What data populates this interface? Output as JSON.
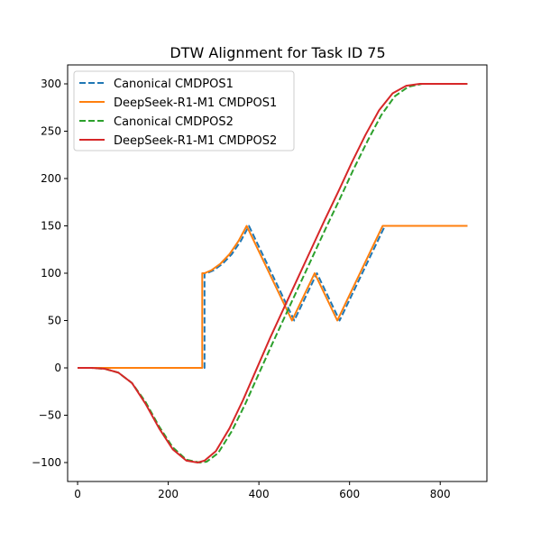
{
  "chart_data": {
    "type": "line",
    "title": "DTW Alignment for Task ID 75",
    "xlabel": "",
    "ylabel": "",
    "xlim": [
      -22,
      903
    ],
    "ylim": [
      -120,
      320
    ],
    "xticks": [
      0,
      200,
      400,
      600,
      800
    ],
    "yticks": [
      -100,
      -50,
      0,
      50,
      100,
      150,
      200,
      250,
      300
    ],
    "grid": false,
    "legend": "top-left",
    "series": [
      {
        "name": "Canonical CMDPOS1",
        "color": "#1f77b4",
        "style": "dashed",
        "points": [
          [
            0,
            0
          ],
          [
            280,
            0
          ],
          [
            280,
            100
          ],
          [
            285,
            100
          ],
          [
            300,
            103
          ],
          [
            320,
            110
          ],
          [
            340,
            120
          ],
          [
            360,
            134
          ],
          [
            378,
            150
          ],
          [
            478,
            50
          ],
          [
            528,
            100
          ],
          [
            578,
            50
          ],
          [
            678,
            150
          ],
          [
            860,
            150
          ]
        ]
      },
      {
        "name": "DeepSeek-R1-M1 CMDPOS1",
        "color": "#ff7f0e",
        "style": "solid",
        "points": [
          [
            0,
            0
          ],
          [
            275,
            0
          ],
          [
            275,
            100
          ],
          [
            280,
            100
          ],
          [
            295,
            103
          ],
          [
            315,
            110
          ],
          [
            335,
            120
          ],
          [
            355,
            134
          ],
          [
            373,
            150
          ],
          [
            473,
            50
          ],
          [
            523,
            100
          ],
          [
            573,
            50
          ],
          [
            673,
            150
          ],
          [
            860,
            150
          ]
        ]
      },
      {
        "name": "Canonical CMDPOS2",
        "color": "#2ca02c",
        "style": "dashed",
        "points": [
          [
            0,
            0
          ],
          [
            30,
            0
          ],
          [
            60,
            -1
          ],
          [
            90,
            -5
          ],
          [
            120,
            -16
          ],
          [
            150,
            -36
          ],
          [
            180,
            -62
          ],
          [
            210,
            -84
          ],
          [
            240,
            -97
          ],
          [
            270,
            -100
          ],
          [
            285,
            -99
          ],
          [
            310,
            -90
          ],
          [
            340,
            -67
          ],
          [
            370,
            -38
          ],
          [
            400,
            -6
          ],
          [
            430,
            26
          ],
          [
            460,
            57
          ],
          [
            490,
            88
          ],
          [
            520,
            119
          ],
          [
            550,
            150
          ],
          [
            580,
            180
          ],
          [
            610,
            211
          ],
          [
            640,
            240
          ],
          [
            670,
            267
          ],
          [
            700,
            287
          ],
          [
            730,
            297
          ],
          [
            760,
            300
          ],
          [
            790,
            300
          ],
          [
            860,
            300
          ]
        ]
      },
      {
        "name": "DeepSeek-R1-M1 CMDPOS2",
        "color": "#d62728",
        "style": "solid",
        "points": [
          [
            0,
            0
          ],
          [
            30,
            0
          ],
          [
            60,
            -1
          ],
          [
            90,
            -5
          ],
          [
            120,
            -16
          ],
          [
            150,
            -38
          ],
          [
            180,
            -64
          ],
          [
            210,
            -86
          ],
          [
            240,
            -98
          ],
          [
            265,
            -100
          ],
          [
            280,
            -98
          ],
          [
            305,
            -88
          ],
          [
            335,
            -64
          ],
          [
            365,
            -34
          ],
          [
            395,
            -1
          ],
          [
            425,
            32
          ],
          [
            455,
            63
          ],
          [
            485,
            94
          ],
          [
            515,
            125
          ],
          [
            545,
            156
          ],
          [
            575,
            186
          ],
          [
            605,
            217
          ],
          [
            635,
            246
          ],
          [
            665,
            272
          ],
          [
            695,
            290
          ],
          [
            725,
            298
          ],
          [
            755,
            300
          ],
          [
            790,
            300
          ],
          [
            860,
            300
          ]
        ]
      }
    ]
  }
}
